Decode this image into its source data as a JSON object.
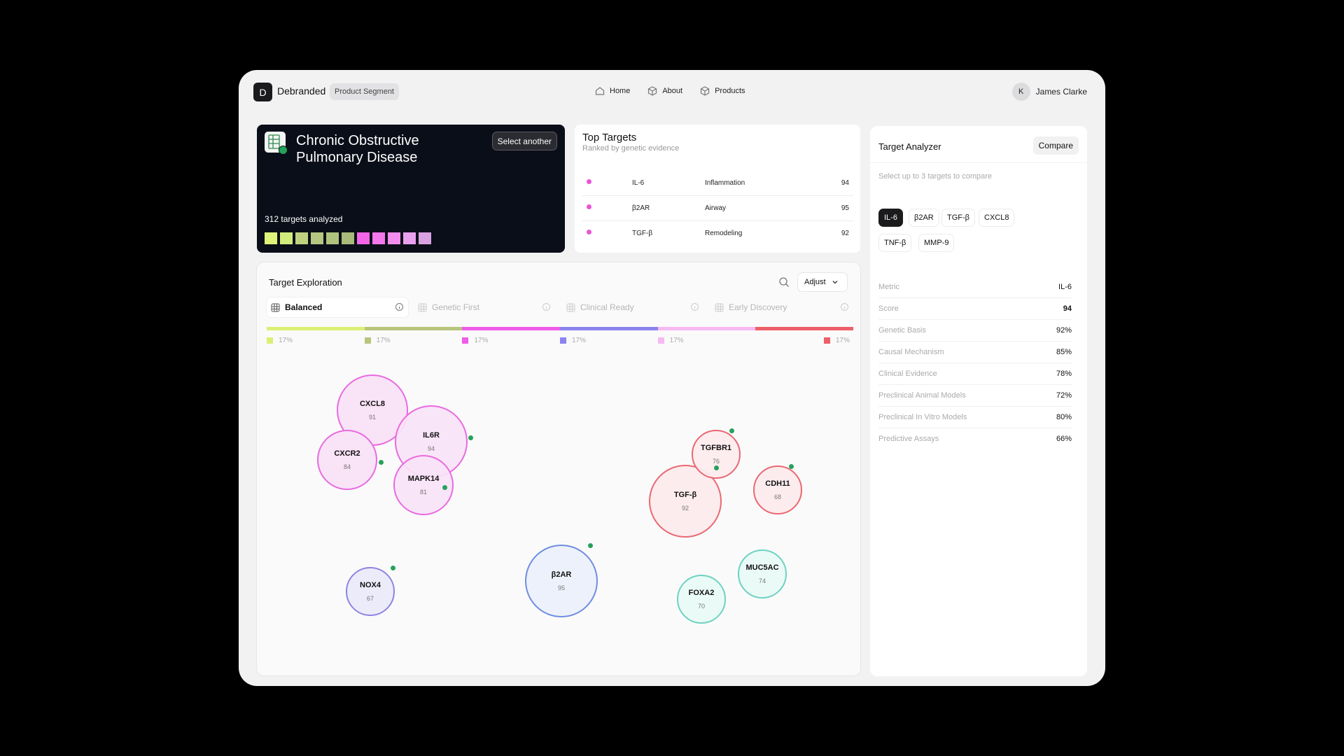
{
  "header": {
    "logo_letter": "D",
    "brand": "Debranded",
    "segment": "Product Segment",
    "nav": [
      {
        "label": "Home",
        "icon": "home-icon"
      },
      {
        "label": "About",
        "icon": "box-icon"
      },
      {
        "label": "Products",
        "icon": "box-icon"
      }
    ],
    "user": {
      "initial": "K",
      "name": "James Clarke"
    }
  },
  "disease": {
    "title": "Chronic Obstructive Pulmonary Disease",
    "select_label": "Select another",
    "targets_analyzed": "312 targets analyzed",
    "swatches": [
      "#dff27a",
      "#d2ec7c",
      "#bfd17f",
      "#b6c681",
      "#b0c37c",
      "#a9bb78",
      "#f265e8",
      "#f278ec",
      "#f28ded",
      "#e9a0ee",
      "#d7a2df"
    ]
  },
  "top_targets": {
    "title": "Top Targets",
    "subtitle": "Ranked by genetic evidence",
    "rows": [
      {
        "name": "IL-6",
        "category": "Inflammation",
        "score": "94",
        "color": "#e855d6"
      },
      {
        "name": "β2AR",
        "category": "Airway",
        "score": "95",
        "color": "#e855d6"
      },
      {
        "name": "TGF-β",
        "category": "Remodeling",
        "score": "92",
        "color": "#e855d6"
      }
    ]
  },
  "exploration": {
    "title": "Target Exploration",
    "adjust_label": "Adjust",
    "tabs": [
      {
        "label": "Balanced",
        "active": true
      },
      {
        "label": "Genetic First",
        "active": false
      },
      {
        "label": "Clinical Ready",
        "active": false
      },
      {
        "label": "Early Discovery",
        "active": false
      }
    ],
    "weights": [
      {
        "pct": "17%",
        "color": "#dcef74"
      },
      {
        "pct": "17%",
        "color": "#b8c57c"
      },
      {
        "pct": "17%",
        "color": "#ef5ce8"
      },
      {
        "pct": "17%",
        "color": "#8b84ef"
      },
      {
        "pct": "17%",
        "color": "#f6b9f2"
      },
      {
        "pct": "17%",
        "color": "#ee5f68"
      }
    ],
    "bubbles": [
      {
        "name": "CXCL8",
        "score": "91"
      },
      {
        "name": "IL6R",
        "score": "94"
      },
      {
        "name": "CXCR2",
        "score": "84"
      },
      {
        "name": "MAPK14",
        "score": "81"
      },
      {
        "name": "NOX4",
        "score": "67"
      },
      {
        "name": "β2AR",
        "score": "95"
      },
      {
        "name": "TGFBR1",
        "score": "76"
      },
      {
        "name": "TGF-β",
        "score": "92"
      },
      {
        "name": "CDH11",
        "score": "68"
      },
      {
        "name": "MUC5AC",
        "score": "74"
      },
      {
        "name": "FOXA2",
        "score": "70"
      }
    ]
  },
  "analyzer": {
    "title": "Target Analyzer",
    "compare_label": "Compare",
    "hint": "Select up to 3 targets to compare",
    "chips": [
      {
        "label": "IL-6",
        "active": true
      },
      {
        "label": "β2AR",
        "active": false
      },
      {
        "label": "TGF-β",
        "active": false
      },
      {
        "label": "CXCL8",
        "active": false
      },
      {
        "label": "TNF-β",
        "active": false
      },
      {
        "label": "MMP-9",
        "active": false
      }
    ],
    "metrics": [
      {
        "label": "Metric",
        "value": "IL-6"
      },
      {
        "label": "Score",
        "value": "94"
      },
      {
        "label": "Genetic Basis",
        "value": "92%"
      },
      {
        "label": "Causal Mechanism",
        "value": "85%"
      },
      {
        "label": "Clinical Evidence",
        "value": "78%"
      },
      {
        "label": "Preclinical Animal Models",
        "value": "72%"
      },
      {
        "label": "Preclinical In Vitro Models",
        "value": "80%"
      },
      {
        "label": "Predictive Assays",
        "value": "66%"
      }
    ]
  }
}
